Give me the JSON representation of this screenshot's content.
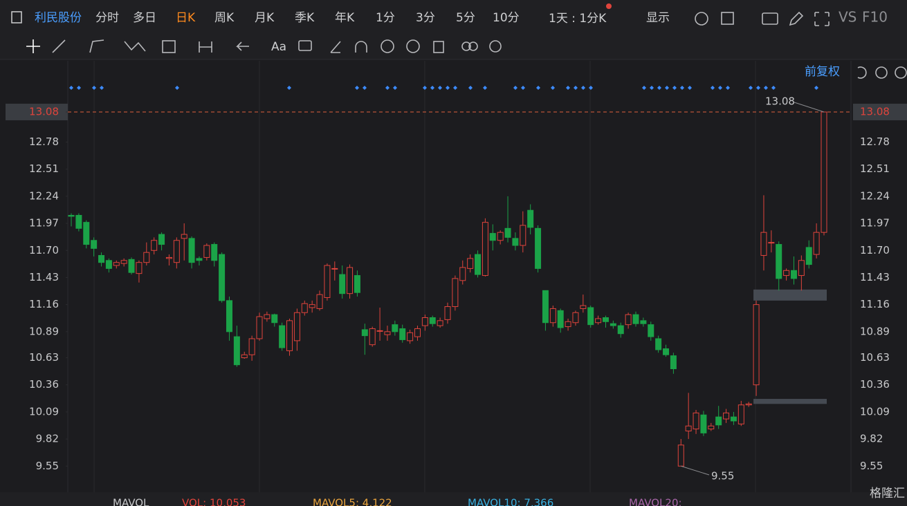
{
  "toolbar": {
    "stock_name": "利民股份",
    "periods": [
      "分时",
      "多日",
      "日K",
      "周K",
      "月K",
      "季K",
      "年K",
      "1分",
      "3分",
      "5分",
      "10分"
    ],
    "active_period": 2,
    "combo": "1天 : 1分K",
    "display": "显示",
    "vs": "VS",
    "f10": "F10",
    "text_tool": "Aa",
    "adjust": "前复权"
  },
  "volume_bar": {
    "title": "MAVOL",
    "items": [
      {
        "text": "VOL: 10,053",
        "color": "#e0443c"
      },
      {
        "text": "MAVOL5: 4,122",
        "color": "#e8a33d"
      },
      {
        "text": "MAVOL10: 7,366",
        "color": "#39b1e2"
      },
      {
        "text": "MAVOL20:",
        "color": "#a865a8"
      }
    ]
  },
  "watermark": "格隆汇",
  "chart_data": {
    "type": "candlestick",
    "up_color": "#e0443c",
    "down_color": "#1ba348",
    "ylim": [
      9.29,
      13.59
    ],
    "yticks": [
      13.08,
      12.78,
      12.51,
      12.24,
      11.97,
      {
        "value": 11.7,
        "label": "11.70"
      },
      11.43,
      11.16,
      10.89,
      10.63,
      10.36,
      10.09,
      9.82,
      9.55
    ],
    "grid": false,
    "last_price": 13.08,
    "max_label": 13.08,
    "min_label": 9.55,
    "gap_zones": [
      {
        "low": 11.2,
        "high": 11.31
      },
      {
        "low": 10.17,
        "high": 10.22
      }
    ],
    "open": [
      12.05,
      12.05,
      11.98,
      11.8,
      11.65,
      11.6,
      11.55,
      11.57,
      11.61,
      11.47,
      11.58,
      11.7,
      11.86,
      11.62,
      11.58,
      11.82,
      11.82,
      11.62,
      11.63,
      11.76,
      11.66,
      11.2,
      10.84,
      10.63,
      10.66,
      10.82,
      11.02,
      11.06,
      10.95,
      10.7,
      10.8,
      11.08,
      11.13,
      11.12,
      11.23,
      11.52,
      11.46,
      11.27,
      11.45,
      10.91,
      10.76,
      10.9,
      10.86,
      10.96,
      10.92,
      10.8,
      10.84,
      10.95,
      11.03,
      10.95,
      11.01,
      11.14,
      11.4,
      11.52,
      11.66,
      11.45,
      11.87,
      11.8,
      11.92,
      11.82,
      11.75,
      12.1,
      11.92,
      11.3,
      10.98,
      11.1,
      10.94,
      10.98,
      11.12,
      11.13,
      10.98,
      11.03,
      10.97,
      10.95,
      10.96,
      11.06,
      11.0,
      10.96,
      10.82,
      10.72,
      10.65,
      9.55,
      9.9,
      9.92,
      10.06,
      9.92,
      10.04,
      10.02,
      10.04,
      9.97,
      10.16,
      10.36,
      11.65,
      11.78,
      11.76,
      11.45,
      11.5,
      11.45,
      11.73,
      11.66,
      11.88
    ],
    "high": [
      12.07,
      12.07,
      12.0,
      11.83,
      11.68,
      11.62,
      11.6,
      11.62,
      11.63,
      11.6,
      11.78,
      11.83,
      11.88,
      11.66,
      11.83,
      11.97,
      11.84,
      11.64,
      11.77,
      11.78,
      11.68,
      11.24,
      10.95,
      10.69,
      10.85,
      11.08,
      11.09,
      11.07,
      10.98,
      11.02,
      11.12,
      11.2,
      11.2,
      11.3,
      11.57,
      11.59,
      11.55,
      11.56,
      11.5,
      10.97,
      10.94,
      11.13,
      10.95,
      11.0,
      10.96,
      10.91,
      10.95,
      11.06,
      11.05,
      11.03,
      11.18,
      11.45,
      11.6,
      11.66,
      11.7,
      12.02,
      11.96,
      11.9,
      12.24,
      11.88,
      12.09,
      12.16,
      11.95,
      11.3,
      11.15,
      11.12,
      11.02,
      11.1,
      11.26,
      11.15,
      11.05,
      11.05,
      11.0,
      10.98,
      11.08,
      11.09,
      11.03,
      10.99,
      10.85,
      10.76,
      10.68,
      9.82,
      10.28,
      10.11,
      10.1,
      9.98,
      10.15,
      10.12,
      10.09,
      10.2,
      10.19,
      11.2,
      12.25,
      11.9,
      11.79,
      11.52,
      11.64,
      11.65,
      11.8,
      11.97,
      13.08
    ],
    "low": [
      11.94,
      11.89,
      11.72,
      11.64,
      11.54,
      11.48,
      11.52,
      11.54,
      11.46,
      11.38,
      11.55,
      11.66,
      11.7,
      11.55,
      11.52,
      11.6,
      11.52,
      11.55,
      11.6,
      11.54,
      11.18,
      10.8,
      10.54,
      10.62,
      10.6,
      10.8,
      10.99,
      10.94,
      10.7,
      10.65,
      10.7,
      11.05,
      11.08,
      11.1,
      11.2,
      11.4,
      11.22,
      11.22,
      11.24,
      10.66,
      10.74,
      10.8,
      10.8,
      10.85,
      10.78,
      10.77,
      10.8,
      10.9,
      10.94,
      10.93,
      10.97,
      11.1,
      11.36,
      11.48,
      11.43,
      11.44,
      11.7,
      11.76,
      11.78,
      11.7,
      11.68,
      11.86,
      11.48,
      10.9,
      10.94,
      10.88,
      10.9,
      10.95,
      11.08,
      10.93,
      10.96,
      10.93,
      10.92,
      10.83,
      10.92,
      10.94,
      10.94,
      10.8,
      10.68,
      10.64,
      10.47,
      9.55,
      9.82,
      9.87,
      9.85,
      9.9,
      9.92,
      9.98,
      9.96,
      9.95,
      10.14,
      10.25,
      11.5,
      11.68,
      11.3,
      11.4,
      11.36,
      11.3,
      11.52,
      11.62,
      11.85
    ],
    "close": [
      12.04,
      11.92,
      11.76,
      11.72,
      11.58,
      11.52,
      11.58,
      11.6,
      11.48,
      11.58,
      11.68,
      11.8,
      11.76,
      11.63,
      11.8,
      11.86,
      11.58,
      11.6,
      11.75,
      11.6,
      11.2,
      10.89,
      10.56,
      10.66,
      10.82,
      11.04,
      11.06,
      10.98,
      10.73,
      11.0,
      11.08,
      11.17,
      11.16,
      11.26,
      11.55,
      11.52,
      11.27,
      11.53,
      11.28,
      10.85,
      10.92,
      10.9,
      10.89,
      10.89,
      10.81,
      10.88,
      10.92,
      11.03,
      10.97,
      11.0,
      11.14,
      11.42,
      11.53,
      11.62,
      11.46,
      11.98,
      11.8,
      11.88,
      11.83,
      11.75,
      11.95,
      11.93,
      11.52,
      10.98,
      11.12,
      10.93,
      10.99,
      11.08,
      11.15,
      10.96,
      11.02,
      10.99,
      10.95,
      10.87,
      11.06,
      10.97,
      10.97,
      10.84,
      10.71,
      10.66,
      10.52,
      9.76,
      9.95,
      10.08,
      9.88,
      9.95,
      9.96,
      10.08,
      10.0,
      10.16,
      10.17,
      11.16,
      11.88,
      11.78,
      11.42,
      11.5,
      11.42,
      11.6,
      11.56,
      11.88,
      13.08
    ]
  }
}
